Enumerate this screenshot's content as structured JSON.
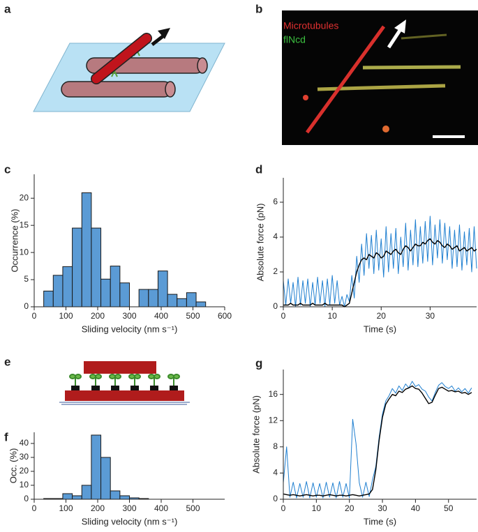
{
  "panel_labels": [
    "a",
    "b",
    "c",
    "d",
    "e",
    "f",
    "g"
  ],
  "image_b_labels": [
    "Microtubules",
    "flNcd"
  ],
  "chart_data": [
    {
      "type": "histogram",
      "xlabel": "Sliding velocity (nm s⁻¹)",
      "ylabel": "Occurrence (%)",
      "bins": [
        30,
        60,
        90,
        120,
        150,
        180,
        210,
        240,
        270,
        300,
        330,
        360,
        390,
        420,
        450,
        480,
        510,
        540
      ],
      "values": [
        2.9,
        5.8,
        7.4,
        14.5,
        21,
        14.5,
        5.1,
        7.5,
        4.4,
        0,
        3.2,
        3.2,
        6.6,
        2.3,
        1.5,
        2.6,
        0.9
      ],
      "color": "#5b9bd5",
      "edgecolor": "#1a1a1a",
      "xlim": [
        0,
        600
      ],
      "xticks": [
        0,
        100,
        200,
        300,
        400,
        500,
        600
      ],
      "ylim": [
        0,
        24.4
      ],
      "yticks": [
        0,
        5,
        10,
        15,
        20
      ]
    },
    {
      "type": "line",
      "xlabel": "Time (s)",
      "ylabel": "Absolute force (pN)",
      "x": [
        0,
        0.5,
        1,
        1.5,
        2,
        2.5,
        3,
        3.5,
        4,
        4.5,
        5,
        5.5,
        6,
        6.5,
        7,
        7.5,
        8,
        8.5,
        9,
        9.5,
        10,
        10.5,
        11,
        11.5,
        12,
        12.5,
        13,
        13.5,
        14,
        14.5,
        15,
        15.5,
        16,
        16.5,
        17,
        17.5,
        18,
        18.5,
        19,
        19.5,
        20,
        20.5,
        21,
        21.5,
        22,
        22.5,
        23,
        23.5,
        24,
        24.5,
        25,
        25.5,
        26,
        26.5,
        27,
        27.5,
        28,
        28.5,
        29,
        29.5,
        30,
        30.5,
        31,
        31.5,
        32,
        32.5,
        33,
        33.5,
        34,
        34.5,
        35,
        35.5,
        36,
        36.5,
        37,
        37.5,
        38,
        38.5,
        39,
        39.5
      ],
      "series": [
        {
          "color": "#1f7fd0",
          "values": [
            1.5,
            0.1,
            1.6,
            0.2,
            1.4,
            0.0,
            1.7,
            0.1,
            1.5,
            0.2,
            1.6,
            0.0,
            1.4,
            0.1,
            1.7,
            0.2,
            1.5,
            0.0,
            1.6,
            0.1,
            1.8,
            0.2,
            1.5,
            0.1,
            0.6,
            0.0,
            0.7,
            0.3,
            1.8,
            0.5,
            2.9,
            1.4,
            3.6,
            1.8,
            4.2,
            2.2,
            4.1,
            1.9,
            4.4,
            2.1,
            3.9,
            1.7,
            4.6,
            2.0,
            4.2,
            2.2,
            4.5,
            1.9,
            4.0,
            2.3,
            4.8,
            2.1,
            4.4,
            2.4,
            5.0,
            2.3,
            4.6,
            2.5,
            4.9,
            2.6,
            5.2,
            2.4,
            4.7,
            2.8,
            5.0,
            2.5,
            4.8,
            2.7,
            4.6,
            2.2,
            4.4,
            2.3,
            4.7,
            2.1,
            4.3,
            2.4,
            4.5,
            2.0,
            4.6,
            2.2
          ]
        },
        {
          "color": "#000000",
          "values": [
            0.1,
            0.1,
            0.1,
            0.2,
            0.1,
            0.1,
            0.1,
            0.2,
            0.1,
            0.1,
            0.1,
            0.1,
            0.2,
            0.1,
            0.1,
            0.1,
            0.1,
            0.2,
            0.1,
            0.1,
            0.1,
            0.1,
            0.1,
            0.1,
            0.1,
            0.0,
            0.1,
            0.2,
            0.8,
            1.4,
            2.0,
            2.4,
            2.7,
            2.8,
            2.7,
            3.0,
            2.9,
            2.8,
            3.1,
            3.0,
            2.8,
            2.9,
            3.2,
            3.1,
            3.0,
            3.2,
            3.3,
            3.1,
            3.0,
            3.3,
            3.5,
            3.4,
            3.2,
            3.4,
            3.6,
            3.5,
            3.5,
            3.7,
            3.6,
            3.8,
            3.9,
            3.7,
            3.6,
            3.8,
            3.7,
            3.5,
            3.4,
            3.6,
            3.5,
            3.3,
            3.4,
            3.5,
            3.2,
            3.3,
            3.4,
            3.2,
            3.3,
            3.4,
            3.2,
            3.3
          ]
        }
      ],
      "xlim": [
        0,
        39.5
      ],
      "xticks": [
        0,
        10,
        20,
        30
      ],
      "ylim": [
        0,
        7.4
      ],
      "yticks": [
        0,
        2,
        4,
        6
      ]
    },
    {
      "type": "histogram",
      "xlabel": "Sliding velocity (nm s⁻¹)",
      "ylabel": "Occ. (%)",
      "bins": [
        30,
        60,
        90,
        120,
        150,
        180,
        210,
        240,
        270,
        300,
        330,
        360
      ],
      "values": [
        0.5,
        0.5,
        4,
        2.5,
        10,
        46,
        30,
        6,
        2.5,
        1,
        0.5
      ],
      "color": "#5b9bd5",
      "edgecolor": "#1a1a1a",
      "xlim": [
        0,
        600
      ],
      "xticks": [
        0,
        100,
        200,
        300,
        400,
        500
      ],
      "ylim": [
        0,
        48
      ],
      "yticks": [
        0,
        10,
        20,
        30,
        40
      ]
    },
    {
      "type": "line",
      "xlabel": "Time (s)",
      "ylabel": "Absolute force (pN)",
      "x": [
        0,
        1,
        2,
        3,
        4,
        5,
        6,
        7,
        8,
        9,
        10,
        11,
        12,
        13,
        14,
        15,
        16,
        17,
        18,
        19,
        20,
        21,
        22,
        23,
        24,
        25,
        26,
        27,
        28,
        29,
        30,
        31,
        32,
        33,
        34,
        35,
        36,
        37,
        38,
        39,
        40,
        41,
        42,
        43,
        44,
        45,
        46,
        47,
        48,
        49,
        50,
        51,
        52,
        53,
        54,
        55,
        56,
        57
      ],
      "series": [
        {
          "color": "#1f7fd0",
          "values": [
            2.5,
            8.0,
            0.3,
            2.6,
            0.2,
            2.4,
            0.3,
            2.7,
            0.2,
            2.5,
            0.3,
            2.4,
            0.2,
            2.6,
            0.3,
            2.5,
            0.2,
            2.7,
            0.3,
            2.4,
            0.2,
            12.2,
            8.5,
            2.5,
            0.3,
            2.6,
            0.4,
            3.0,
            5.0,
            9.5,
            13.0,
            15.0,
            15.8,
            16.9,
            16.2,
            17.3,
            16.6,
            17.6,
            17.0,
            18.0,
            17.2,
            17.5,
            16.8,
            16.5,
            15.6,
            15.0,
            16.3,
            17.4,
            17.8,
            17.2,
            16.9,
            17.3,
            16.5,
            17.0,
            16.4,
            16.9,
            16.2,
            17.0
          ]
        },
        {
          "color": "#000000",
          "values": [
            0.8,
            0.7,
            0.6,
            0.7,
            0.6,
            0.5,
            0.6,
            0.7,
            0.6,
            0.5,
            0.6,
            0.6,
            0.5,
            0.6,
            0.7,
            0.6,
            0.5,
            0.6,
            0.6,
            0.5,
            0.6,
            0.7,
            0.6,
            0.5,
            0.6,
            0.7,
            0.8,
            1.5,
            4.5,
            9.0,
            12.5,
            14.5,
            15.3,
            16.0,
            15.8,
            16.5,
            16.3,
            16.8,
            17.0,
            17.3,
            16.9,
            16.8,
            16.2,
            15.4,
            14.6,
            14.8,
            15.9,
            16.9,
            17.1,
            16.8,
            16.5,
            16.6,
            16.4,
            16.5,
            16.2,
            16.3,
            16.0,
            16.3
          ]
        }
      ],
      "xlim": [
        0,
        58.5
      ],
      "xticks": [
        0,
        10,
        20,
        30,
        40,
        50
      ],
      "ylim": [
        0,
        19.8
      ],
      "yticks": [
        0,
        4,
        8,
        12,
        16
      ]
    }
  ]
}
